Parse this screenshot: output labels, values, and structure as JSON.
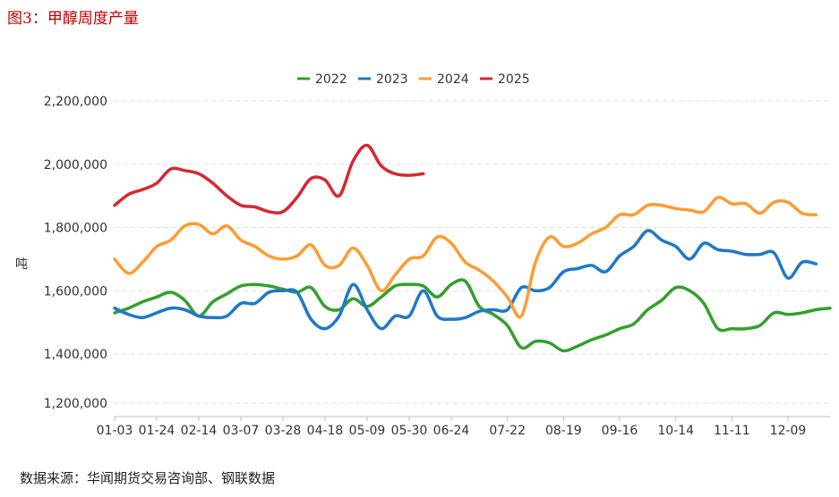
{
  "figure_title": "图3：甲醇周度产量",
  "source_note": "数据来源：华闻期货交易咨询部、钢联数据",
  "chart_data": {
    "type": "line",
    "ylabel": "吨",
    "ylim": [
      1200000,
      2200000
    ],
    "y_ticks": [
      1200000,
      1400000,
      1600000,
      1800000,
      2000000,
      2200000
    ],
    "y_tick_labels": [
      "1,200,000",
      "1,400,000",
      "1,600,000",
      "1,800,000",
      "2,000,000",
      "2,200,000"
    ],
    "x_tick_labels": [
      "01-03",
      "01-24",
      "02-14",
      "03-07",
      "03-28",
      "04-18",
      "05-09",
      "05-30",
      "06-24",
      "07-22",
      "08-19",
      "09-16",
      "10-14",
      "11-11",
      "12-09"
    ],
    "x_tick_weeks": [
      0,
      3,
      6,
      9,
      12,
      15,
      18,
      21,
      24,
      28,
      32,
      36,
      40,
      44,
      48
    ],
    "grid": "horizontal dashed",
    "legend_position": "top-center",
    "series": [
      {
        "name": "2022",
        "color": "#33a02c",
        "values": [
          1530000,
          1545000,
          1565000,
          1580000,
          1595000,
          1570000,
          1520000,
          1565000,
          1590000,
          1615000,
          1620000,
          1615000,
          1605000,
          1595000,
          1610000,
          1550000,
          1540000,
          1575000,
          1550000,
          1580000,
          1615000,
          1620000,
          1615000,
          1580000,
          1620000,
          1630000,
          1550000,
          1525000,
          1490000,
          1420000,
          1440000,
          1435000,
          1410000,
          1425000,
          1445000,
          1460000,
          1480000,
          1495000,
          1540000,
          1570000,
          1610000,
          1600000,
          1560000,
          1480000,
          1480000,
          1480000,
          1490000,
          1530000,
          1525000,
          1530000,
          1540000,
          1545000
        ]
      },
      {
        "name": "2023",
        "color": "#1f78c8",
        "values": [
          1545000,
          1525000,
          1515000,
          1530000,
          1545000,
          1540000,
          1520000,
          1515000,
          1520000,
          1560000,
          1560000,
          1595000,
          1600000,
          1595000,
          1510000,
          1480000,
          1520000,
          1620000,
          1540000,
          1480000,
          1520000,
          1520000,
          1600000,
          1520000,
          1510000,
          1515000,
          1535000,
          1540000,
          1540000,
          1610000,
          1600000,
          1610000,
          1660000,
          1670000,
          1680000,
          1660000,
          1710000,
          1740000,
          1790000,
          1760000,
          1740000,
          1700000,
          1750000,
          1730000,
          1725000,
          1715000,
          1715000,
          1720000,
          1640000,
          1690000,
          1685000
        ]
      },
      {
        "name": "2024",
        "color": "#ff9b33",
        "values": [
          1700000,
          1655000,
          1690000,
          1740000,
          1760000,
          1805000,
          1810000,
          1780000,
          1805000,
          1760000,
          1740000,
          1710000,
          1700000,
          1710000,
          1745000,
          1680000,
          1680000,
          1735000,
          1680000,
          1600000,
          1650000,
          1700000,
          1710000,
          1770000,
          1750000,
          1690000,
          1665000,
          1630000,
          1580000,
          1520000,
          1690000,
          1770000,
          1740000,
          1750000,
          1780000,
          1800000,
          1840000,
          1840000,
          1870000,
          1870000,
          1860000,
          1855000,
          1850000,
          1895000,
          1875000,
          1875000,
          1845000,
          1880000,
          1880000,
          1845000,
          1840000
        ]
      },
      {
        "name": "2025",
        "color": "#d7282d",
        "values": [
          1870000,
          1905000,
          1920000,
          1940000,
          1985000,
          1980000,
          1970000,
          1940000,
          1900000,
          1870000,
          1865000,
          1850000,
          1850000,
          1895000,
          1955000,
          1950000,
          1900000,
          2010000,
          2060000,
          1995000,
          1970000,
          1965000,
          1970000
        ]
      }
    ]
  }
}
